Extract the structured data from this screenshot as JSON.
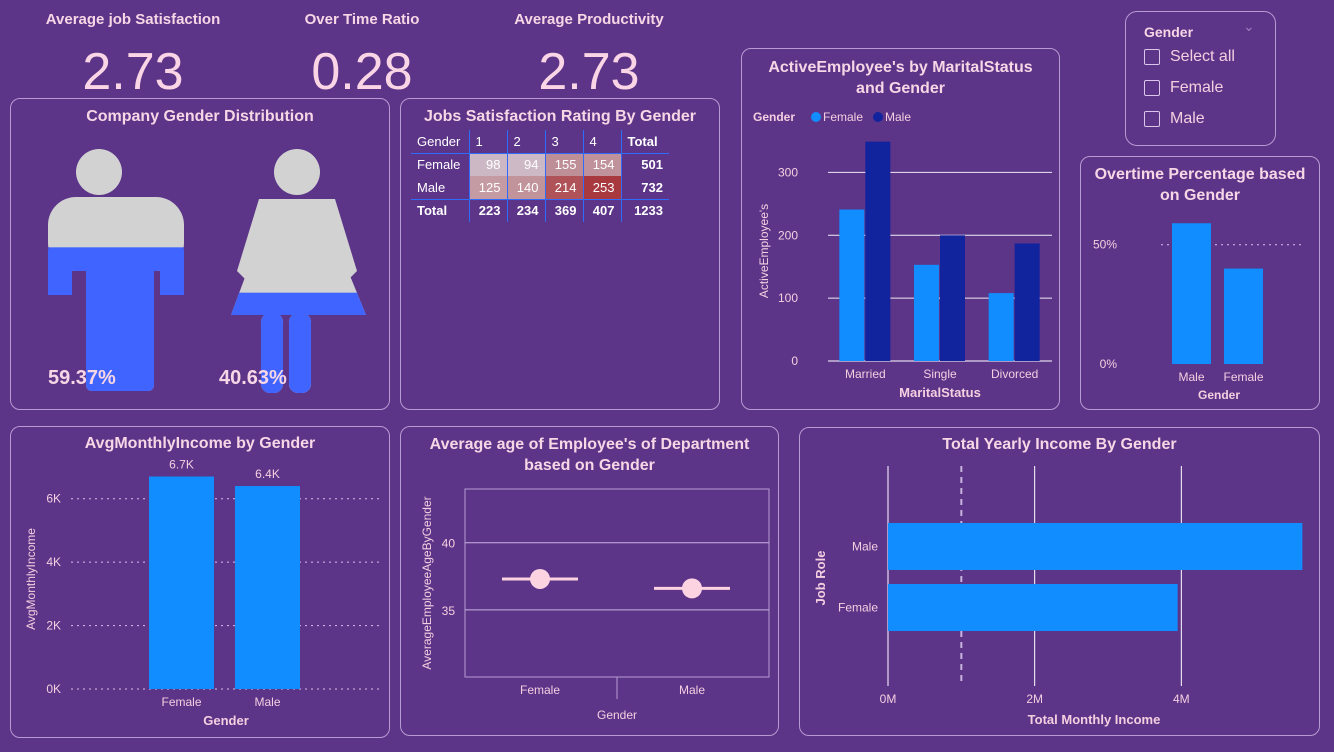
{
  "kpis": [
    {
      "label": "Average job Satisfaction",
      "value": "2.73"
    },
    {
      "label": "Over Time Ratio",
      "value": "0.28"
    },
    {
      "label": "Average Productivity",
      "value": "2.73"
    }
  ],
  "gender_distribution": {
    "title": "Company Gender Distribution",
    "male_pct_label": "59.37%",
    "female_pct_label": "40.63%",
    "male_fill": 0.5937,
    "female_fill": 0.4063,
    "fill_color": "#3f64ff",
    "empty_color": "#d2d2d2"
  },
  "matrix": {
    "title": "Jobs Satisfaction Rating By Gender",
    "headers": [
      "Gender",
      "1",
      "2",
      "3",
      "4",
      "Total"
    ],
    "rows": [
      {
        "label": "Female",
        "cells": [
          "98",
          "94",
          "155",
          "154"
        ],
        "total": "501"
      },
      {
        "label": "Male",
        "cells": [
          "125",
          "140",
          "214",
          "253"
        ],
        "total": "732"
      }
    ],
    "total_row": {
      "label": "Total",
      "cells": [
        "223",
        "234",
        "369",
        "407"
      ],
      "total": "1233"
    }
  },
  "slicer": {
    "title": "Gender",
    "items": [
      "Select all",
      "Female",
      "Male"
    ]
  },
  "chart_data": [
    {
      "id": "marital",
      "type": "bar",
      "title": "ActiveEmployee's by MaritalStatus and Gender",
      "legend_title": "Gender",
      "categories": [
        "Married",
        "Single",
        "Divorced"
      ],
      "series": [
        {
          "name": "Female",
          "values": [
            241,
            153,
            108
          ],
          "color": "#118dff"
        },
        {
          "name": "Male",
          "values": [
            349,
            200,
            187
          ],
          "color": "#12239e"
        }
      ],
      "xlabel": "MaritalStatus",
      "ylabel": "ActiveEmployee's",
      "ylim": [
        0,
        350
      ],
      "yticks": [
        0,
        100,
        200,
        300
      ],
      "grid": true
    },
    {
      "id": "overtime",
      "type": "bar",
      "title": "Overtime Percentage based on Gender",
      "categories": [
        "Male",
        "Female"
      ],
      "values": [
        0.59,
        0.4
      ],
      "xlabel": "Gender",
      "ylim": [
        0,
        0.7
      ],
      "yticks": [
        0,
        0.5
      ],
      "ytick_labels": [
        "0%",
        "50%"
      ],
      "color": "#118dff"
    },
    {
      "id": "income",
      "type": "bar",
      "title": "AvgMonthlyIncome by Gender",
      "categories": [
        "Female",
        "Male"
      ],
      "values": [
        6700,
        6400
      ],
      "data_labels": [
        "6.7K",
        "6.4K"
      ],
      "xlabel": "Gender",
      "ylabel": "AvgMonthlyIncome",
      "ylim": [
        0,
        7000
      ],
      "yticks": [
        0,
        2000,
        4000,
        6000
      ],
      "ytick_labels": [
        "0K",
        "2K",
        "4K",
        "6K"
      ],
      "color": "#118dff"
    },
    {
      "id": "age",
      "type": "scatter",
      "title": "Average age of Employee's of Department based on Gender",
      "categories": [
        "Female",
        "Male"
      ],
      "values": [
        37.3,
        36.6
      ],
      "xlabel": "Gender",
      "ylabel": "AverageEmployeeAgeByGender",
      "ylim": [
        30,
        44
      ],
      "yticks": [
        35,
        40
      ],
      "color": "#fcd3e1"
    },
    {
      "id": "yearly",
      "type": "bar",
      "orientation": "horizontal",
      "title": "Total Yearly Income By Gender",
      "categories": [
        "Male",
        "Female"
      ],
      "values": [
        5650000,
        3950000
      ],
      "xlabel": "Total Monthly Income",
      "ylabel": "Job Role",
      "xlim": [
        0,
        5700000
      ],
      "xticks": [
        0,
        2000000,
        4000000
      ],
      "xtick_labels": [
        "0M",
        "2M",
        "4M"
      ],
      "reference_line": 1000000,
      "color": "#118dff"
    }
  ]
}
